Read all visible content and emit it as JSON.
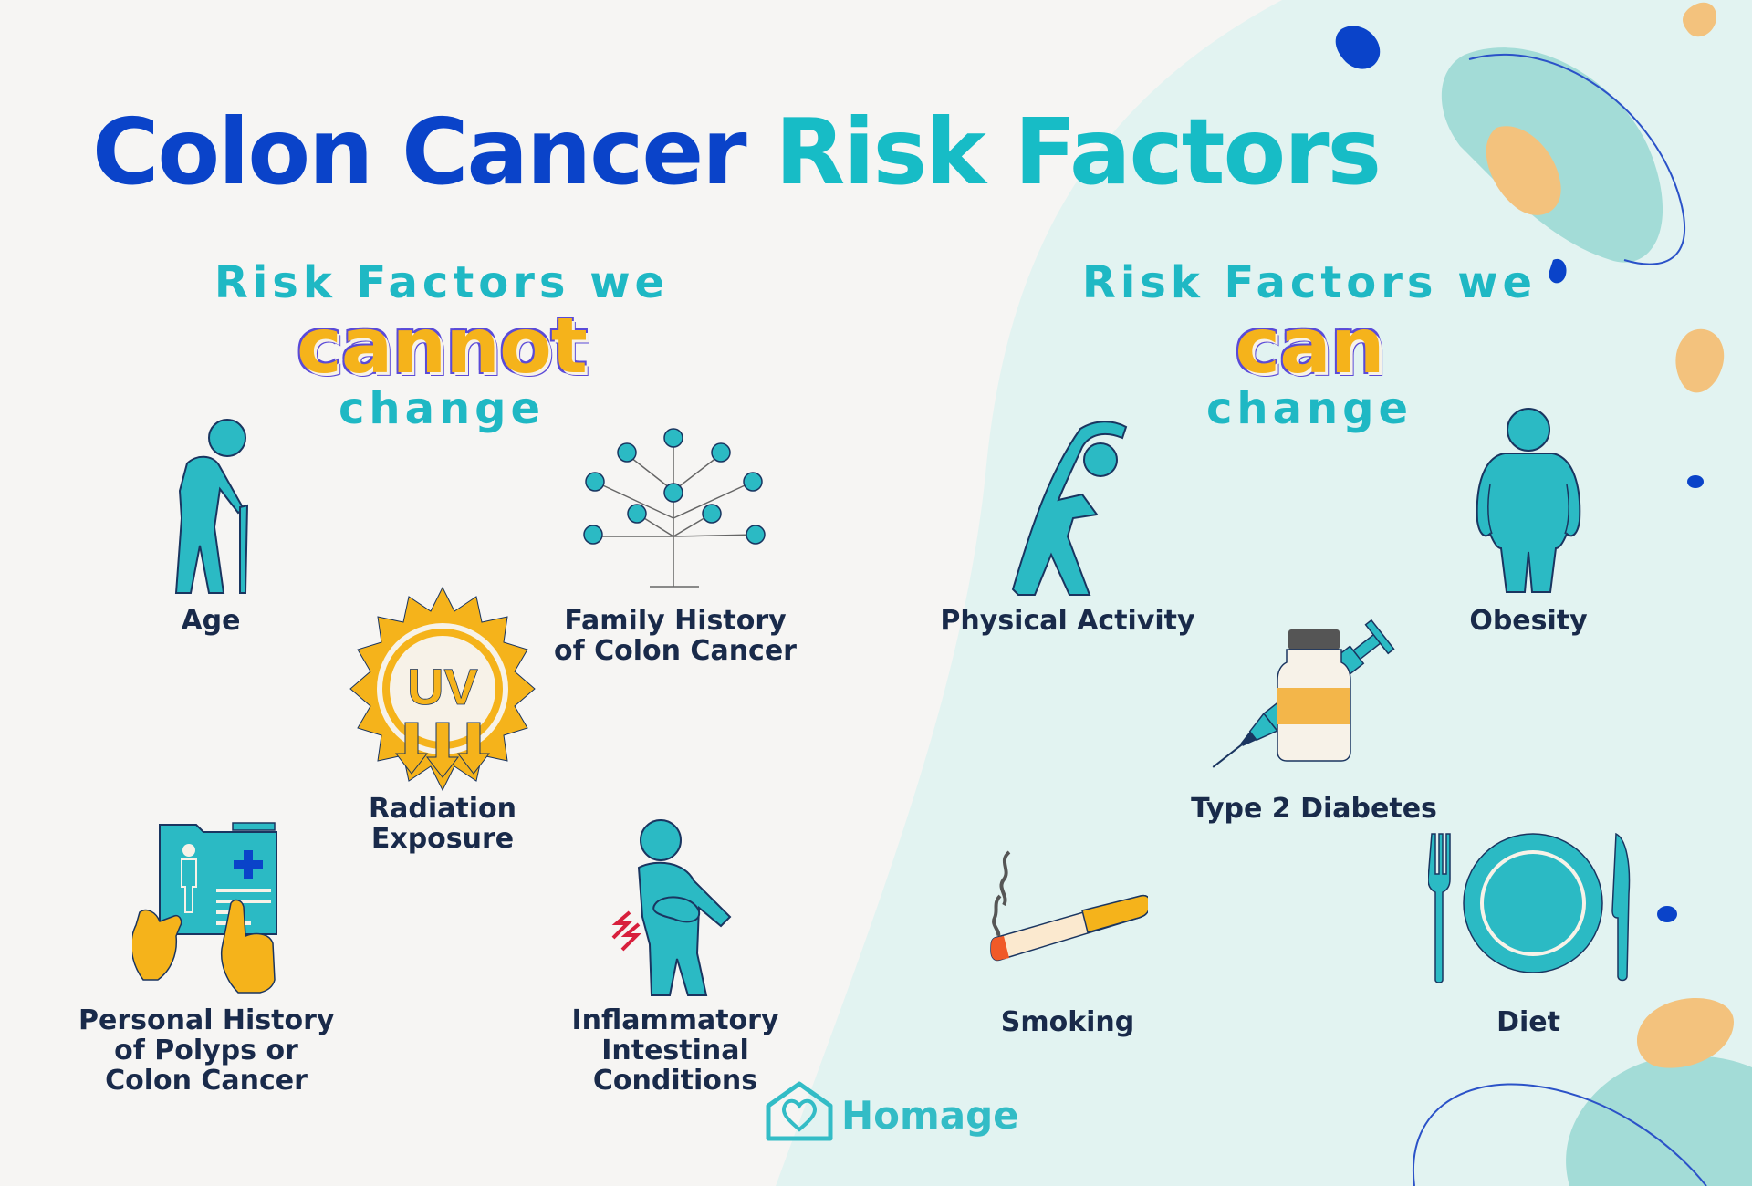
{
  "title": {
    "part1": "Colon Cancer",
    "part2": "Risk Factors"
  },
  "cannot_heading": {
    "line1": "Risk Factors we",
    "emphasis": "cannot",
    "line3": "change"
  },
  "can_heading": {
    "line1": "Risk Factors we",
    "emphasis": "can",
    "line3": "change"
  },
  "cannot_factors": {
    "age": "Age",
    "family_history": [
      "Family History",
      "of Colon Cancer"
    ],
    "radiation": [
      "Radiation",
      "Exposure"
    ],
    "personal_history": [
      "Personal History",
      "of Polyps or",
      "Colon Cancer"
    ],
    "inflammatory": [
      "Inflammatory",
      "Intestinal",
      "Conditions"
    ]
  },
  "can_factors": {
    "physical_activity": "Physical Activity",
    "obesity": "Obesity",
    "diabetes": "Type 2 Diabetes",
    "smoking": "Smoking",
    "diet": "Diet"
  },
  "uv_text": "UV",
  "brand": "Homage",
  "colors": {
    "dark_blue": "#0a43c9",
    "teal": "#17bcc6",
    "icon_teal": "#2bbac4",
    "yellow": "#f5b31b",
    "label_navy": "#192a4a",
    "mint_bg": "#e2f3f1"
  },
  "icons": [
    "elderly-person-icon",
    "family-tree-icon",
    "uv-sun-icon",
    "medical-folder-icon",
    "abdominal-pain-icon",
    "stretching-person-icon",
    "obese-person-icon",
    "syringe-vial-icon",
    "cigarette-icon",
    "plate-cutlery-icon",
    "house-heart-logo-icon"
  ]
}
